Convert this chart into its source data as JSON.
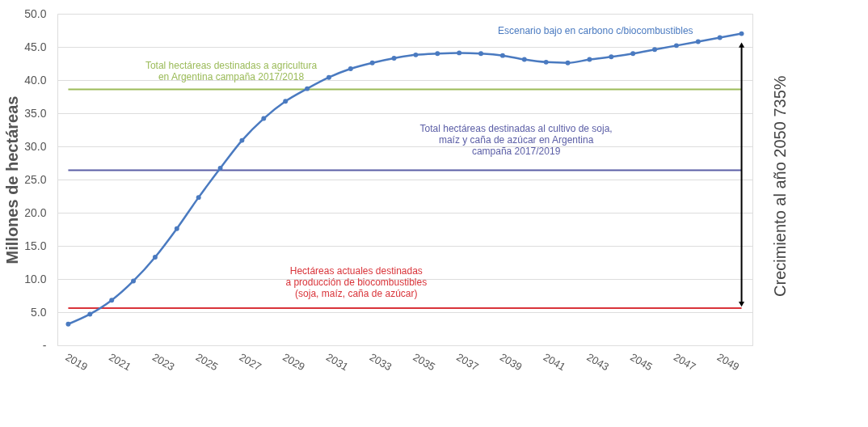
{
  "chart_data": {
    "type": "line",
    "ylabel": "Millones de hectáreas",
    "x": [
      2019,
      2020,
      2021,
      2022,
      2023,
      2024,
      2025,
      2026,
      2027,
      2028,
      2029,
      2030,
      2031,
      2032,
      2033,
      2034,
      2035,
      2036,
      2037,
      2038,
      2039,
      2040,
      2041,
      2042,
      2043,
      2044,
      2045,
      2046,
      2047,
      2048,
      2049,
      2050
    ],
    "series": [
      {
        "name": "Escenario bajo en carbono c/biocombustibles",
        "color": "#4a7ac0",
        "values": [
          3.2,
          4.7,
          6.8,
          9.7,
          13.3,
          17.6,
          22.3,
          26.7,
          30.9,
          34.2,
          36.8,
          38.7,
          40.4,
          41.7,
          42.6,
          43.3,
          43.8,
          44.0,
          44.1,
          44.0,
          43.7,
          43.1,
          42.7,
          42.6,
          43.1,
          43.5,
          44.0,
          44.6,
          45.2,
          45.8,
          46.4,
          47.0
        ]
      }
    ],
    "xlim": [
      2018.5,
      2050.5
    ],
    "xticks": [
      2019,
      2021,
      2023,
      2025,
      2027,
      2029,
      2031,
      2033,
      2035,
      2037,
      2039,
      2041,
      2043,
      2045,
      2047,
      2049
    ],
    "ylim": [
      0,
      50
    ],
    "yticks": [
      {
        "value": 0,
        "label": "-"
      },
      {
        "value": 5,
        "label": "5.0"
      },
      {
        "value": 10,
        "label": "10.0"
      },
      {
        "value": 15,
        "label": "15.0"
      },
      {
        "value": 20,
        "label": "20.0"
      },
      {
        "value": 25,
        "label": "25.0"
      },
      {
        "value": 30,
        "label": "30.0"
      },
      {
        "value": 35,
        "label": "35.0"
      },
      {
        "value": 40,
        "label": "40.0"
      },
      {
        "value": 45,
        "label": "45.0"
      },
      {
        "value": 50,
        "label": "50.0"
      }
    ],
    "ref_lines": [
      {
        "axis": "y",
        "value": 38.6,
        "label": "Total hectáreas destinadas a agricultura\nen Argentina campaña 2017/2018",
        "color": "#9bbb59"
      },
      {
        "axis": "y",
        "value": 26.4,
        "label": "Total hectáreas destinadas al cultivo de soja,\nmaíz y caña de azúcar en Argentina\ncampaña 2017/2019",
        "color": "#5b5ea6"
      },
      {
        "axis": "y",
        "value": 5.6,
        "label": "Hectáreas actuales destinadas\na producción de biocombustibles\n(soja, maíz, caña de azúcar)",
        "color": "#d9343a"
      }
    ],
    "annotations": [
      "Crecimiento al año 2050 735%"
    ],
    "grid": "y",
    "marker": "circle",
    "line_style": "solid",
    "legend": false
  }
}
